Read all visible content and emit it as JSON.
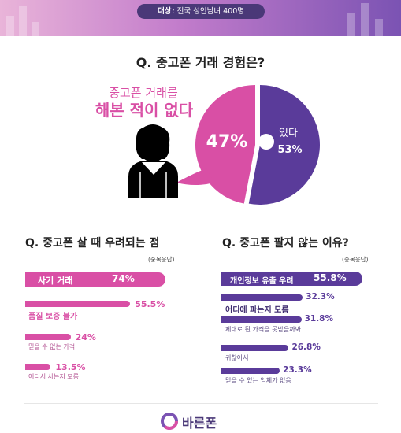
{
  "header": {
    "target_label": "대상",
    "target_value": ": 전국 성인남녀 400명"
  },
  "colors": {
    "pink": "#d94fa5",
    "purple": "#5a3b9a",
    "banner_dark": "#4a3878"
  },
  "chart_data": [
    {
      "type": "pie",
      "title": "Q. 중고폰 거래 경험은?",
      "slices": [
        {
          "label_line1": "중고폰 거래를",
          "label_line2": "해본 적이 없다",
          "value": 47,
          "value_text": "47%"
        },
        {
          "label": "있다",
          "value": 53,
          "value_text": "53%"
        }
      ]
    },
    {
      "type": "bar",
      "title": "Q. 중고폰 살 때 우려되는 점",
      "note": "(중복응답)",
      "categories": [
        "사기 거래",
        "품질 보증 불가",
        "믿을 수 없는 가격",
        "어디서 사는지 모름"
      ],
      "values": [
        74,
        55.5,
        24,
        13.5
      ],
      "value_labels": [
        "74%",
        "55.5%",
        "24%",
        "13.5%"
      ]
    },
    {
      "type": "bar",
      "title": "Q. 중고폰 팔지 않는 이유?",
      "note": "(중복응답)",
      "categories": [
        "개인정보 유출 우려",
        "어디에 파는지 모름",
        "제대로 된 가격을 못받을까봐",
        "귀찮아서",
        "믿을 수 있는 업체가 없음"
      ],
      "values": [
        55.8,
        32.3,
        31.8,
        26.8,
        23.3
      ],
      "value_labels": [
        "55.8%",
        "32.3%",
        "31.8%",
        "26.8%",
        "23.3%"
      ]
    }
  ],
  "footer": {
    "brand": "바른폰"
  }
}
